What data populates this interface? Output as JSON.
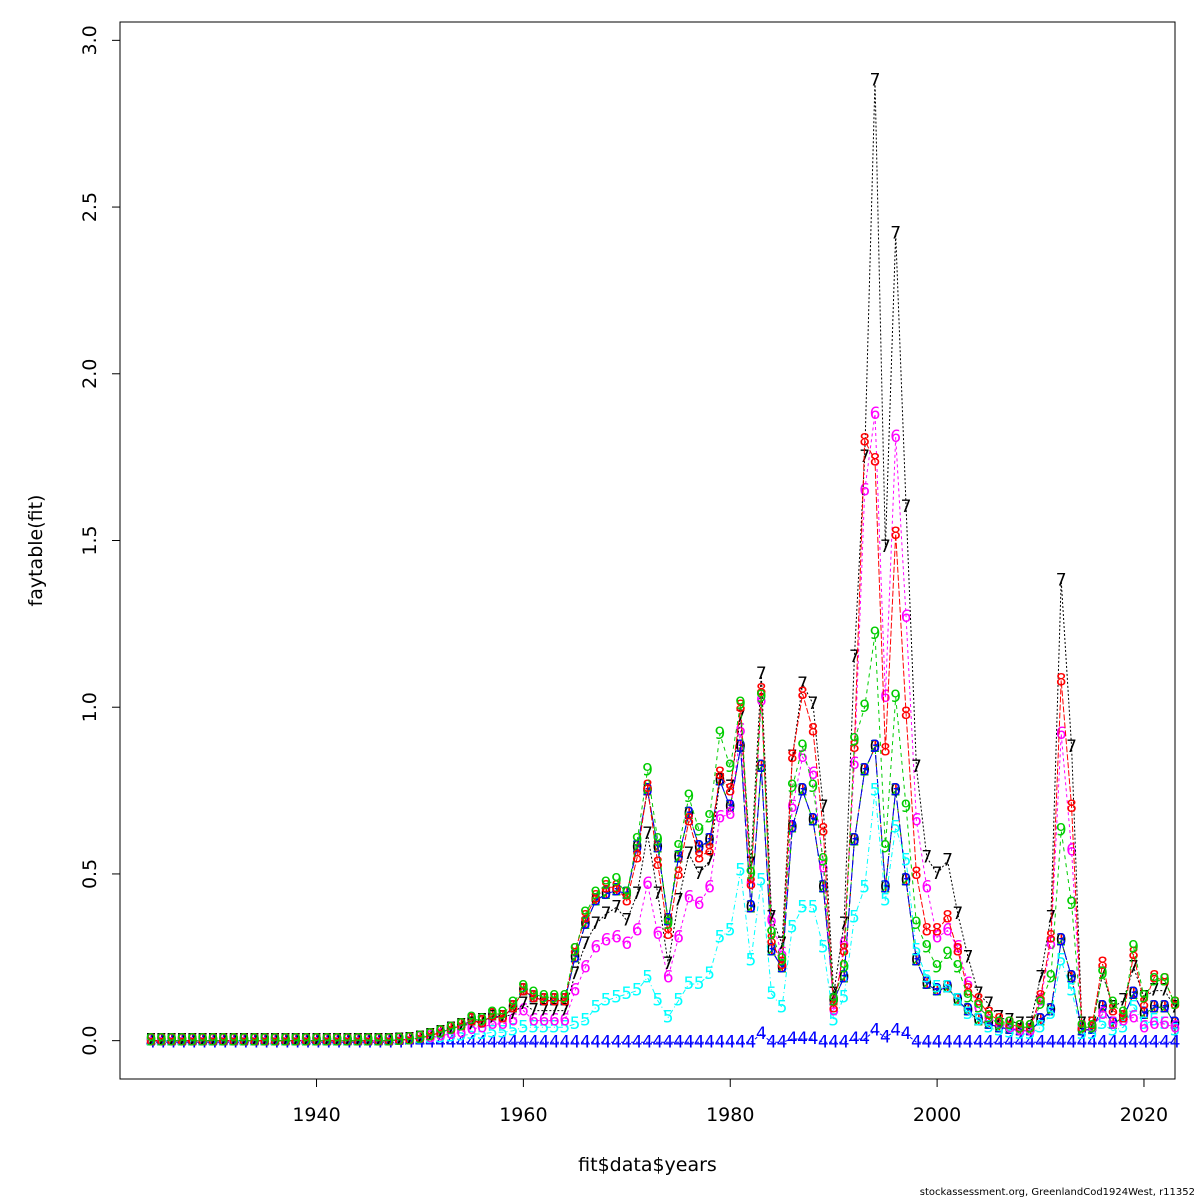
{
  "chart_data": {
    "type": "line",
    "xlabel": "fit$data$years",
    "ylabel": "faytable(fit)",
    "footer": "stockassessment.org, GreenlandCod1924West, r11352",
    "xlim": [
      1921,
      2023
    ],
    "ylim": [
      -0.115,
      3.055
    ],
    "x_ticks": [
      1940,
      1960,
      1980,
      2000,
      2020
    ],
    "y_ticks": [
      0.0,
      0.5,
      1.0,
      1.5,
      2.0,
      2.5,
      3.0
    ],
    "x_start": 1924,
    "series": [
      {
        "name": "0",
        "symbol": "0",
        "color": "#000000",
        "values": [
          0,
          0,
          0,
          0,
          0,
          0,
          0,
          0,
          0,
          0,
          0,
          0,
          0,
          0,
          0,
          0,
          0,
          0,
          0,
          0,
          0,
          0,
          0,
          0,
          0.002,
          0.004,
          0.008,
          0.015,
          0.025,
          0.035,
          0.045,
          0.06,
          0.055,
          0.075,
          0.07,
          0.1,
          0.15,
          0.13,
          0.12,
          0.12,
          0.12,
          0.25,
          0.35,
          0.42,
          0.44,
          0.45,
          0.44,
          0.58,
          0.75,
          0.58,
          0.36,
          0.55,
          0.68,
          0.58,
          0.6,
          0.78,
          0.7,
          0.88,
          0.4,
          0.82,
          0.27,
          0.22,
          0.64,
          0.75,
          0.66,
          0.46,
          0.12,
          0.19,
          0.6,
          0.81,
          0.88,
          0.46,
          0.75,
          0.48,
          0.24,
          0.17,
          0.15,
          0.16,
          0.12,
          0.09,
          0.06,
          0.05,
          0.04,
          0.035,
          0.03,
          0.03,
          0.06,
          0.09,
          0.3,
          0.19,
          0.03,
          0.035,
          0.1,
          0.05,
          0.07,
          0.14,
          0.08,
          0.1,
          0.1,
          0.05
        ]
      },
      {
        "name": "1",
        "symbol": "1",
        "color": "#ff0000",
        "values": [
          0,
          0,
          0,
          0,
          0,
          0,
          0,
          0,
          0,
          0,
          0,
          0,
          0,
          0,
          0,
          0,
          0,
          0,
          0,
          0,
          0,
          0,
          0,
          0,
          0.002,
          0.004,
          0.008,
          0.015,
          0.025,
          0.035,
          0.045,
          0.06,
          0.055,
          0.075,
          0.07,
          0.1,
          0.15,
          0.13,
          0.12,
          0.12,
          0.12,
          0.25,
          0.35,
          0.42,
          0.44,
          0.45,
          0.44,
          0.58,
          0.75,
          0.58,
          0.36,
          0.55,
          0.68,
          0.58,
          0.6,
          0.78,
          0.7,
          0.88,
          0.4,
          0.82,
          0.27,
          0.22,
          0.64,
          0.75,
          0.66,
          0.46,
          0.12,
          0.19,
          0.6,
          0.81,
          0.88,
          0.46,
          0.75,
          0.48,
          0.24,
          0.17,
          0.15,
          0.16,
          0.12,
          0.09,
          0.06,
          0.05,
          0.04,
          0.035,
          0.03,
          0.03,
          0.06,
          0.09,
          0.3,
          0.19,
          0.03,
          0.035,
          0.1,
          0.05,
          0.07,
          0.14,
          0.08,
          0.1,
          0.1,
          0.05
        ]
      },
      {
        "name": "2",
        "symbol": "2",
        "color": "#00cd00",
        "values": [
          0,
          0,
          0,
          0,
          0,
          0,
          0,
          0,
          0,
          0,
          0,
          0,
          0,
          0,
          0,
          0,
          0,
          0,
          0,
          0,
          0,
          0,
          0,
          0,
          0.002,
          0.004,
          0.008,
          0.015,
          0.025,
          0.035,
          0.045,
          0.06,
          0.055,
          0.075,
          0.07,
          0.1,
          0.15,
          0.13,
          0.12,
          0.12,
          0.12,
          0.25,
          0.35,
          0.42,
          0.44,
          0.45,
          0.44,
          0.58,
          0.75,
          0.58,
          0.36,
          0.55,
          0.68,
          0.58,
          0.6,
          0.78,
          0.7,
          0.88,
          0.4,
          0.82,
          0.27,
          0.22,
          0.64,
          0.75,
          0.66,
          0.46,
          0.12,
          0.19,
          0.6,
          0.81,
          0.88,
          0.46,
          0.75,
          0.48,
          0.24,
          0.17,
          0.15,
          0.16,
          0.12,
          0.09,
          0.06,
          0.05,
          0.04,
          0.035,
          0.03,
          0.03,
          0.06,
          0.09,
          0.3,
          0.19,
          0.03,
          0.035,
          0.1,
          0.05,
          0.07,
          0.14,
          0.08,
          0.1,
          0.1,
          0.05
        ]
      },
      {
        "name": "3",
        "symbol": "3",
        "color": "#0000ff",
        "values": [
          0,
          0,
          0,
          0,
          0,
          0,
          0,
          0,
          0,
          0,
          0,
          0,
          0,
          0,
          0,
          0,
          0,
          0,
          0,
          0,
          0,
          0,
          0,
          0,
          0.002,
          0.004,
          0.008,
          0.015,
          0.025,
          0.035,
          0.045,
          0.06,
          0.055,
          0.075,
          0.07,
          0.1,
          0.15,
          0.13,
          0.12,
          0.12,
          0.12,
          0.25,
          0.35,
          0.42,
          0.44,
          0.45,
          0.44,
          0.58,
          0.75,
          0.58,
          0.36,
          0.55,
          0.68,
          0.58,
          0.6,
          0.78,
          0.7,
          0.88,
          0.4,
          0.82,
          0.27,
          0.22,
          0.64,
          0.75,
          0.66,
          0.46,
          0.12,
          0.19,
          0.6,
          0.81,
          0.88,
          0.46,
          0.75,
          0.48,
          0.24,
          0.17,
          0.15,
          0.16,
          0.12,
          0.09,
          0.06,
          0.05,
          0.04,
          0.035,
          0.03,
          0.03,
          0.06,
          0.09,
          0.3,
          0.19,
          0.03,
          0.035,
          0.1,
          0.05,
          0.07,
          0.14,
          0.08,
          0.1,
          0.1,
          0.05
        ]
      },
      {
        "name": "4",
        "symbol": "4",
        "color": "#0000ff",
        "values": [
          -0.005,
          -0.005,
          -0.005,
          -0.005,
          -0.005,
          -0.005,
          -0.005,
          -0.005,
          -0.005,
          -0.005,
          -0.005,
          -0.005,
          -0.005,
          -0.005,
          -0.005,
          -0.005,
          -0.005,
          -0.005,
          -0.005,
          -0.005,
          -0.005,
          -0.005,
          -0.005,
          -0.005,
          -0.005,
          -0.005,
          -0.005,
          -0.005,
          -0.005,
          -0.005,
          -0.005,
          -0.005,
          -0.005,
          -0.005,
          -0.005,
          -0.005,
          -0.005,
          -0.005,
          -0.005,
          -0.005,
          -0.005,
          -0.005,
          -0.005,
          -0.005,
          -0.005,
          -0.005,
          -0.005,
          -0.005,
          -0.005,
          -0.005,
          -0.005,
          -0.005,
          -0.005,
          -0.005,
          -0.005,
          -0.005,
          -0.005,
          -0.005,
          -0.005,
          0.02,
          -0.005,
          -0.005,
          0.005,
          0.005,
          0.005,
          -0.005,
          -0.005,
          -0.005,
          0.005,
          0.005,
          0.03,
          0.01,
          0.03,
          0.02,
          -0.005,
          -0.005,
          -0.005,
          -0.005,
          -0.005,
          -0.005,
          -0.005,
          -0.005,
          -0.005,
          -0.005,
          -0.005,
          -0.005,
          -0.005,
          -0.005,
          -0.005,
          -0.005,
          -0.005,
          -0.005,
          -0.005,
          -0.005,
          -0.005,
          -0.005,
          -0.005,
          -0.005,
          -0.005,
          -0.005
        ]
      },
      {
        "name": "5",
        "symbol": "5",
        "color": "#00ffff",
        "values": [
          0,
          0,
          0,
          0,
          0,
          0,
          0,
          0,
          0,
          0,
          0,
          0,
          0,
          0,
          0,
          0,
          0,
          0,
          0,
          0,
          0,
          0,
          0,
          0,
          0.002,
          0.004,
          0.006,
          0.008,
          0.01,
          0.012,
          0.015,
          0.02,
          0.02,
          0.025,
          0.025,
          0.03,
          0.04,
          0.04,
          0.04,
          0.04,
          0.04,
          0.05,
          0.06,
          0.1,
          0.12,
          0.13,
          0.14,
          0.15,
          0.19,
          0.12,
          0.07,
          0.12,
          0.17,
          0.17,
          0.2,
          0.31,
          0.33,
          0.51,
          0.24,
          0.48,
          0.14,
          0.1,
          0.34,
          0.4,
          0.4,
          0.28,
          0.06,
          0.13,
          0.37,
          0.46,
          0.75,
          0.42,
          0.64,
          0.54,
          0.27,
          0.19,
          0.16,
          0.16,
          0.12,
          0.08,
          0.06,
          0.04,
          0.03,
          0.025,
          0.02,
          0.02,
          0.04,
          0.08,
          0.24,
          0.15,
          0.02,
          0.02,
          0.05,
          0.03,
          0.04,
          0.1,
          0.05,
          0.06,
          0.05,
          0.03
        ]
      },
      {
        "name": "6",
        "symbol": "6",
        "color": "#ff00ff",
        "values": [
          0,
          0,
          0,
          0,
          0,
          0,
          0,
          0,
          0,
          0,
          0,
          0,
          0,
          0,
          0,
          0,
          0,
          0,
          0,
          0,
          0,
          0,
          0,
          0,
          0.002,
          0.004,
          0.008,
          0.01,
          0.015,
          0.02,
          0.025,
          0.035,
          0.04,
          0.05,
          0.05,
          0.06,
          0.09,
          0.06,
          0.06,
          0.06,
          0.06,
          0.15,
          0.22,
          0.28,
          0.3,
          0.31,
          0.29,
          0.33,
          0.47,
          0.32,
          0.19,
          0.31,
          0.43,
          0.41,
          0.46,
          0.67,
          0.68,
          0.93,
          0.47,
          1.02,
          0.36,
          0.26,
          0.7,
          0.85,
          0.8,
          0.52,
          0.09,
          0.29,
          0.83,
          1.65,
          1.88,
          1.03,
          1.81,
          1.27,
          0.66,
          0.46,
          0.31,
          0.33,
          0.28,
          0.17,
          0.1,
          0.07,
          0.05,
          0.04,
          0.03,
          0.03,
          0.12,
          0.29,
          0.92,
          0.57,
          0.04,
          0.04,
          0.08,
          0.05,
          0.06,
          0.07,
          0.04,
          0.05,
          0.05,
          0.04
        ]
      },
      {
        "name": "7",
        "symbol": "7",
        "color": "#000000",
        "values": [
          0,
          0,
          0,
          0,
          0,
          0,
          0,
          0,
          0,
          0,
          0,
          0,
          0,
          0,
          0,
          0,
          0,
          0,
          0,
          0,
          0,
          0,
          0,
          0,
          0.002,
          0.004,
          0.008,
          0.015,
          0.025,
          0.035,
          0.045,
          0.05,
          0.06,
          0.07,
          0.07,
          0.08,
          0.11,
          0.09,
          0.09,
          0.09,
          0.09,
          0.2,
          0.29,
          0.35,
          0.38,
          0.4,
          0.36,
          0.44,
          0.62,
          0.44,
          0.23,
          0.42,
          0.56,
          0.5,
          0.54,
          0.78,
          0.76,
          0.97,
          0.53,
          1.1,
          0.37,
          0.29,
          0.85,
          1.07,
          1.01,
          0.7,
          0.14,
          0.35,
          1.15,
          1.75,
          2.88,
          1.48,
          2.42,
          1.6,
          0.82,
          0.55,
          0.5,
          0.54,
          0.38,
          0.25,
          0.14,
          0.11,
          0.07,
          0.06,
          0.05,
          0.05,
          0.19,
          0.37,
          1.38,
          0.88,
          0.05,
          0.05,
          0.2,
          0.1,
          0.12,
          0.22,
          0.13,
          0.15,
          0.15,
          0.1
        ]
      },
      {
        "name": "8",
        "symbol": "8",
        "color": "#ff0000",
        "values": [
          0,
          0,
          0,
          0,
          0,
          0,
          0,
          0,
          0,
          0,
          0,
          0,
          0,
          0,
          0,
          0,
          0,
          0,
          0,
          0,
          0,
          0,
          0,
          0,
          0.002,
          0.004,
          0.008,
          0.015,
          0.025,
          0.035,
          0.045,
          0.06,
          0.055,
          0.075,
          0.07,
          0.1,
          0.15,
          0.13,
          0.12,
          0.12,
          0.12,
          0.27,
          0.37,
          0.43,
          0.46,
          0.46,
          0.42,
          0.55,
          0.76,
          0.53,
          0.32,
          0.5,
          0.66,
          0.55,
          0.57,
          0.8,
          0.75,
          1.0,
          0.47,
          1.05,
          0.3,
          0.23,
          0.85,
          1.04,
          0.93,
          0.63,
          0.1,
          0.27,
          0.88,
          1.8,
          1.74,
          0.87,
          1.52,
          0.98,
          0.5,
          0.33,
          0.33,
          0.37,
          0.27,
          0.15,
          0.12,
          0.08,
          0.06,
          0.05,
          0.04,
          0.04,
          0.13,
          0.31,
          1.08,
          0.7,
          0.04,
          0.05,
          0.23,
          0.09,
          0.07,
          0.26,
          0.11,
          0.19,
          0.18,
          0.11
        ]
      },
      {
        "name": "9",
        "symbol": "9",
        "color": "#00cd00",
        "values": [
          0,
          0,
          0,
          0,
          0,
          0,
          0,
          0,
          0,
          0,
          0,
          0,
          0,
          0,
          0,
          0,
          0,
          0,
          0,
          0,
          0,
          0,
          0,
          0,
          0.002,
          0.004,
          0.008,
          0.015,
          0.025,
          0.035,
          0.045,
          0.065,
          0.06,
          0.08,
          0.08,
          0.11,
          0.16,
          0.14,
          0.13,
          0.13,
          0.13,
          0.27,
          0.38,
          0.44,
          0.47,
          0.48,
          0.44,
          0.6,
          0.81,
          0.6,
          0.35,
          0.58,
          0.73,
          0.63,
          0.67,
          0.92,
          0.82,
          1.01,
          0.5,
          1.03,
          0.32,
          0.24,
          0.76,
          0.88,
          0.76,
          0.54,
          0.12,
          0.22,
          0.9,
          1.0,
          1.22,
          0.58,
          1.03,
          0.7,
          0.35,
          0.28,
          0.22,
          0.26,
          0.22,
          0.13,
          0.1,
          0.07,
          0.05,
          0.05,
          0.04,
          0.04,
          0.11,
          0.19,
          0.63,
          0.41,
          0.04,
          0.04,
          0.2,
          0.11,
          0.08,
          0.28,
          0.13,
          0.18,
          0.18,
          0.11
        ]
      }
    ]
  }
}
